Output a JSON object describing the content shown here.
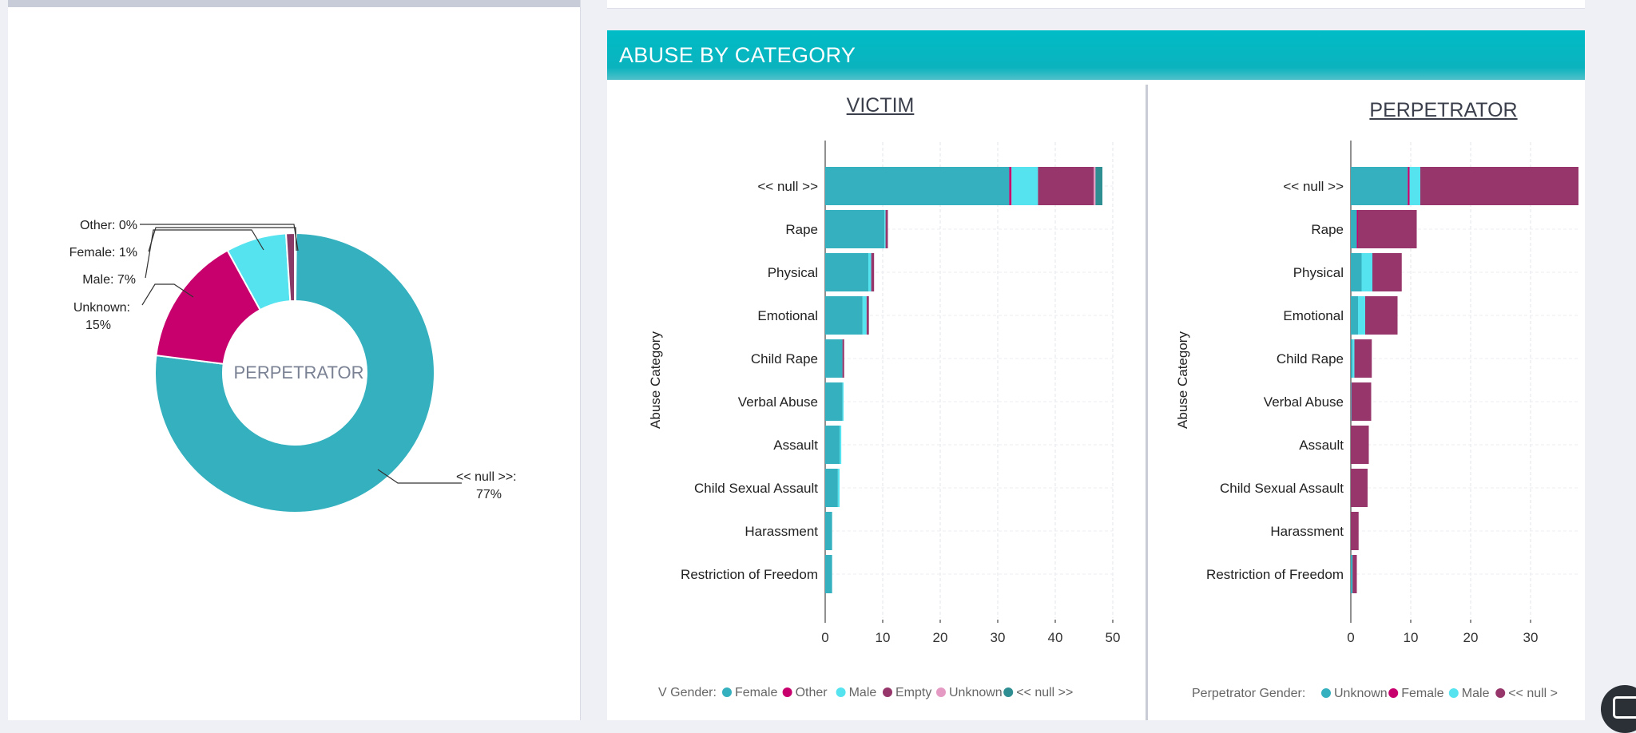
{
  "left": {
    "donut": {
      "center_label": "PERPETRATOR",
      "labels": [
        "Other: 0%",
        "Female: 1%",
        "Male: 7%",
        "Unknown:",
        "15%",
        "<< null >>:",
        "77%"
      ]
    }
  },
  "section": {
    "title": "ABUSE BY CATEGORY"
  },
  "victim": {
    "title": "VICTIM",
    "y_axis_label": "Abuse Category",
    "legend_title": "V Gender:",
    "legend": [
      {
        "name": "Female",
        "color": "#34b0be"
      },
      {
        "name": "Other",
        "color": "#c8006e"
      },
      {
        "name": "Male",
        "color": "#55e3ef"
      },
      {
        "name": "Empty",
        "color": "#96366a"
      },
      {
        "name": "Unknown",
        "color": "#e59ac4"
      },
      {
        "name": "<< null >>",
        "color": "#2e8e92"
      }
    ]
  },
  "perpetrator": {
    "title": "PERPETRATOR",
    "y_axis_label": "Abuse Category",
    "legend_title": "Perpetrator Gender:",
    "legend": [
      {
        "name": "Unknown",
        "color": "#34b0be"
      },
      {
        "name": "Female",
        "color": "#c8006e"
      },
      {
        "name": "Male",
        "color": "#55e3ef"
      },
      {
        "name": "<< null >",
        "color": "#96366a"
      }
    ]
  },
  "chart_data": [
    {
      "type": "pie",
      "title": "PERPETRATOR",
      "categories": [
        "<< null >>",
        "Unknown",
        "Male",
        "Female",
        "Other"
      ],
      "values": [
        77,
        15,
        7,
        1,
        0
      ],
      "colors": [
        "#34b0be",
        "#c8006e",
        "#55e3ef",
        "#8a3a66",
        "#c8ccd6"
      ]
    },
    {
      "type": "bar",
      "orientation": "horizontal",
      "stacked": true,
      "title": "VICTIM",
      "ylabel": "Abuse Category",
      "categories": [
        "<< null >>",
        "Rape",
        "Physical",
        "Emotional",
        "Child Rape",
        "Verbal Abuse",
        "Assault",
        "Child Sexual Assault",
        "Harassment",
        "Restriction of Freedom"
      ],
      "xlim": [
        0,
        50
      ],
      "xticks": [
        0,
        10,
        20,
        30,
        40,
        50
      ],
      "grid": true,
      "legend_position": "bottom",
      "series": [
        {
          "name": "Female",
          "color": "#34b0be",
          "values": [
            32,
            10.3,
            7.5,
            6.5,
            3,
            3,
            2.5,
            2.2,
            1.2,
            1.2
          ]
        },
        {
          "name": "Other",
          "color": "#c8006e",
          "values": [
            0.4,
            0,
            0,
            0,
            0,
            0,
            0,
            0,
            0,
            0
          ]
        },
        {
          "name": "Male",
          "color": "#55e3ef",
          "values": [
            4.6,
            0.2,
            0.5,
            0.7,
            0,
            0.2,
            0.3,
            0.3,
            0,
            0
          ]
        },
        {
          "name": "Empty",
          "color": "#96366a",
          "values": [
            9.7,
            0.4,
            0.5,
            0.4,
            0.3,
            0,
            0,
            0,
            0,
            0
          ]
        },
        {
          "name": "Unknown",
          "color": "#e59ac4",
          "values": [
            0.3,
            0,
            0,
            0,
            0,
            0,
            0,
            0,
            0,
            0
          ]
        },
        {
          "name": "<< null >>",
          "color": "#2e8e92",
          "values": [
            1.2,
            0,
            0,
            0,
            0,
            0,
            0,
            0,
            0,
            0
          ]
        }
      ]
    },
    {
      "type": "bar",
      "orientation": "horizontal",
      "stacked": true,
      "title": "PERPETRATOR",
      "ylabel": "Abuse Category",
      "categories": [
        "<< null >>",
        "Rape",
        "Physical",
        "Emotional",
        "Child Rape",
        "Verbal Abuse",
        "Assault",
        "Child Sexual Assault",
        "Harassment",
        "Restriction of Freedom"
      ],
      "xlim": [
        0,
        38
      ],
      "xticks": [
        0,
        10,
        20,
        30
      ],
      "grid": true,
      "legend_position": "bottom",
      "series": [
        {
          "name": "Unknown",
          "color": "#34b0be",
          "values": [
            9.5,
            1,
            1.8,
            1.2,
            0.3,
            0.1,
            0,
            0,
            0,
            0.3
          ]
        },
        {
          "name": "Female",
          "color": "#c8006e",
          "values": [
            0.3,
            0.2,
            0,
            0,
            0,
            0,
            0,
            0,
            0,
            0
          ]
        },
        {
          "name": "Male",
          "color": "#55e3ef",
          "values": [
            1.8,
            0,
            1.8,
            1.2,
            0.3,
            0,
            0,
            0,
            0,
            0
          ]
        },
        {
          "name": "<< null >",
          "color": "#96366a",
          "values": [
            26.4,
            9.8,
            4.9,
            5.4,
            2.9,
            3.3,
            3,
            2.8,
            1.3,
            0.7
          ]
        }
      ]
    }
  ]
}
